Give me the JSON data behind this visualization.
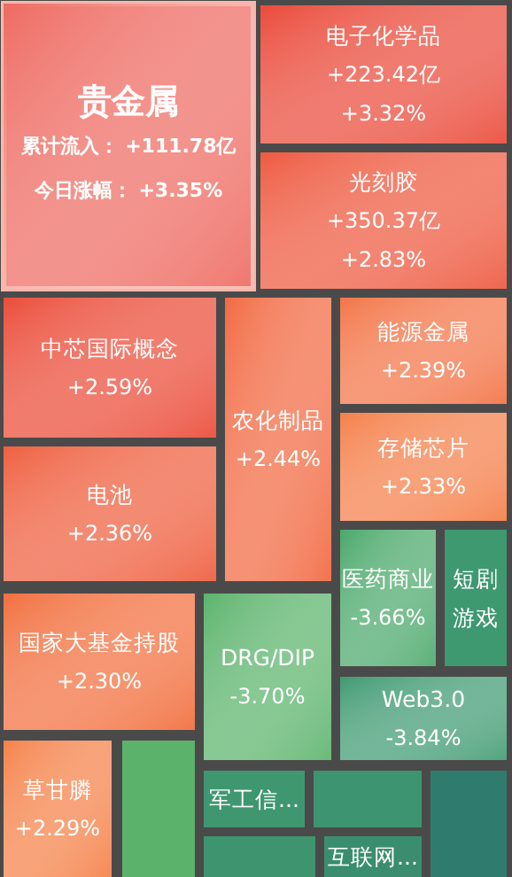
{
  "chart_data": {
    "type": "other",
    "categories": [
      "贵金属",
      "电子化学品",
      "光刻胶",
      "中芯国际概念",
      "电池",
      "农化制品",
      "能源金属",
      "存储芯片",
      "医药商业",
      "短剧游戏",
      "国家大基金持股",
      "DRG/DIP",
      "Web3.0",
      "草甘膦",
      null,
      "军工信...",
      null,
      null,
      null,
      "互联网..."
    ],
    "value_labels": [
      "今日涨幅：  +3.35%",
      "+3.32%",
      "+2.83%",
      "+2.59%",
      "+2.36%",
      "+2.44%",
      "+2.39%",
      "+2.33%",
      "-3.66%",
      null,
      "+2.30%",
      "-3.70%",
      "-3.84%",
      "+2.29%",
      null,
      null,
      null,
      null,
      null,
      null
    ],
    "values": [
      3.35,
      3.32,
      2.83,
      2.59,
      2.36,
      2.44,
      2.39,
      2.33,
      -3.66,
      null,
      2.3,
      -3.7,
      -3.84,
      2.29,
      null,
      null,
      null,
      null,
      null,
      null
    ],
    "colors": [
      "#ee6b62",
      "#ea4a3a",
      "#ee5a40",
      "#eb4d3a",
      "#ef6040",
      "#f26a43",
      "#f37548",
      "#f5804b",
      "#4aa86a",
      "#3e9870",
      "#f2703f",
      "#5bb36b",
      "#3f9a72",
      "#f5824a",
      "#5bb36b",
      "#3f9770",
      "#3d9471",
      "#2f7c6e",
      "#3f9470",
      "#3a8e6f"
    ],
    "annotations": [
      {
        "text": "累计流入：  +111.78亿",
        "x": "贵金属"
      },
      {
        "text": "+223.42亿",
        "x": "电子化学品"
      },
      {
        "text": "+350.37亿",
        "x": "光刻胶"
      }
    ]
  }
}
